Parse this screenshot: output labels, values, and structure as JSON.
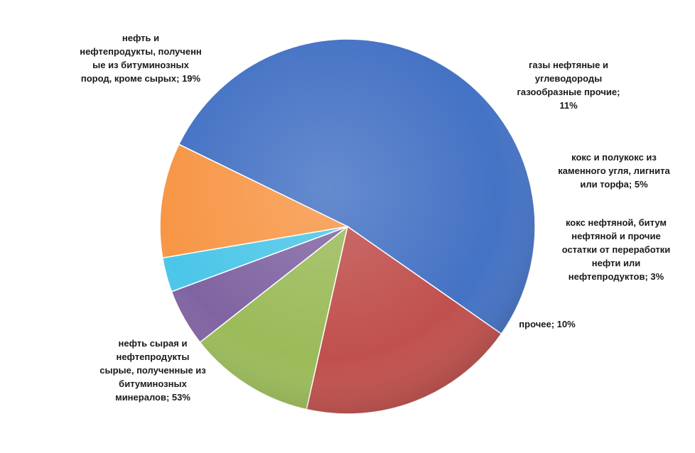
{
  "chart_data": {
    "type": "pie",
    "slices": [
      {
        "label": "нефть сырая и\nнефтепродукты\nсырые, полученные из\nбитуминозных\nминералов; 53%",
        "value": 53,
        "color": "#4472C4"
      },
      {
        "label": "нефть и\nнефтепродукты, полученн\nые из битуминозных\nпород, кроме сырых; 19%",
        "value": 19,
        "color": "#C0504D"
      },
      {
        "label": "газы нефтяные и\nуглеводороды\nгазообразные прочие;\n11%",
        "value": 11,
        "color": "#9BBB59"
      },
      {
        "label": "кокс и полукокс из\nкаменного угля, лигнита\nили торфа; 5%",
        "value": 5,
        "color": "#8064A2"
      },
      {
        "label": "кокс нефтяной, битум\nнефтяной и прочие\nостатки от переработки\nнефти или\nнефтепродуктов; 3%",
        "value": 3,
        "color": "#4BC6E8"
      },
      {
        "label": "прочее; 10%",
        "value": 10,
        "color": "#F79646"
      }
    ]
  }
}
